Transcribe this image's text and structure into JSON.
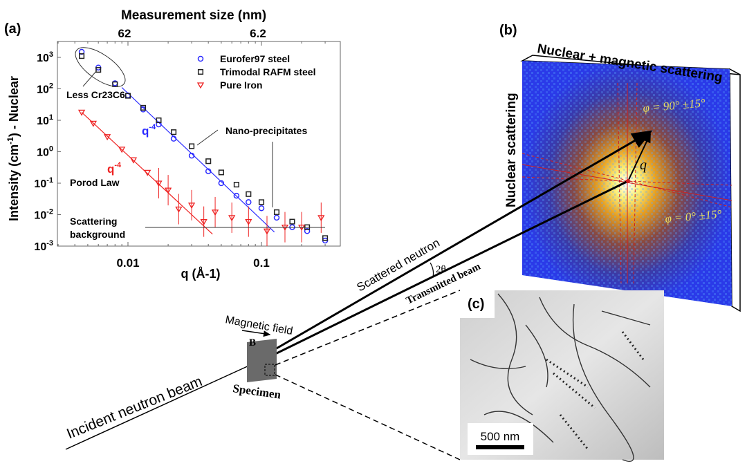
{
  "panels": {
    "a": "(a)",
    "b": "(b)",
    "c": "(c)"
  },
  "chart_data": {
    "type": "scatter",
    "title": "Measurement size (nm)",
    "xlabel": "q (Å-1)",
    "ylabel": "Intensity (cm-1) - Nuclear",
    "xscale": "log",
    "yscale": "log",
    "xlim": [
      0.0031,
      0.4
    ],
    "ylim": [
      0.001,
      3000
    ],
    "x_ticks": [
      {
        "v": 0.01,
        "label": "0.01"
      },
      {
        "v": 0.1,
        "label": "0.1"
      }
    ],
    "top_ticks": [
      {
        "v": 0.01,
        "label": "62"
      },
      {
        "v": 0.1,
        "label": "6.2"
      }
    ],
    "y_ticks": [
      {
        "v": 1000,
        "base": "10",
        "exp": "3"
      },
      {
        "v": 100,
        "base": "10",
        "exp": "2"
      },
      {
        "v": 10,
        "base": "10",
        "exp": "1"
      },
      {
        "v": 1,
        "base": "10",
        "exp": "0"
      },
      {
        "v": 0.1,
        "base": "10",
        "exp": "-1"
      },
      {
        "v": 0.01,
        "base": "10",
        "exp": "-2"
      },
      {
        "v": 0.001,
        "base": "10",
        "exp": "-3"
      }
    ],
    "legend_position": "top-right",
    "series": [
      {
        "name": "Eurofer97 steel",
        "marker": "circle",
        "color": "#2a2aff",
        "x": [
          0.0045,
          0.006,
          0.008,
          0.01,
          0.013,
          0.017,
          0.022,
          0.03,
          0.04,
          0.05,
          0.065,
          0.08,
          0.1,
          0.13,
          0.17,
          0.22,
          0.3
        ],
        "y": [
          1500,
          475,
          150,
          62,
          22,
          7.4,
          2.6,
          0.75,
          0.24,
          0.1,
          0.04,
          0.025,
          0.016,
          0.008,
          0.004,
          0.003,
          0.0015
        ]
      },
      {
        "name": "Trimodal RAFM steel",
        "marker": "square",
        "color": "#222222",
        "x": [
          0.0045,
          0.006,
          0.008,
          0.01,
          0.013,
          0.017,
          0.022,
          0.03,
          0.04,
          0.05,
          0.065,
          0.08,
          0.1,
          0.13,
          0.17,
          0.22,
          0.3
        ],
        "y": [
          1100,
          400,
          140,
          60,
          25,
          10,
          4.2,
          1.5,
          0.5,
          0.22,
          0.09,
          0.045,
          0.025,
          0.012,
          0.006,
          0.004,
          0.0018
        ]
      },
      {
        "name": "Pure Iron",
        "marker": "triangle-down",
        "color": "#ee2222",
        "x": [
          0.0045,
          0.0055,
          0.007,
          0.009,
          0.011,
          0.014,
          0.017,
          0.02,
          0.024,
          0.03,
          0.037,
          0.045,
          0.06,
          0.08,
          0.11,
          0.15,
          0.2,
          0.28
        ],
        "y": [
          18,
          8,
          3,
          1.2,
          0.55,
          0.22,
          0.1,
          0.06,
          0.015,
          0.02,
          0.006,
          0.012,
          0.008,
          0.006,
          0.003,
          0.004,
          0.004,
          0.008
        ]
      }
    ],
    "fits": [
      {
        "label": "q-4",
        "color": "#2a2aff",
        "x": [
          0.009,
          0.125
        ],
        "y": [
          110,
          0.0028
        ]
      },
      {
        "label": "q-4",
        "color": "#ee2222",
        "x": [
          0.0045,
          0.043
        ],
        "y": [
          18,
          0.0024
        ]
      }
    ],
    "annotations": {
      "less_carbide": "Less Cr23C6",
      "nano": "Nano-precipitates",
      "porod": "Porod Law",
      "background_1": "Scattering",
      "background_2": "background",
      "q4_base": "q",
      "q4_exp": "-4"
    }
  },
  "diagram": {
    "detector_top": "Nuclear + magnetic scattering",
    "detector_side": "Nuclear scattering",
    "phi90": "φ = 90° ±15°",
    "phi0": "φ = 0° ±15°",
    "q_vector": "q⃗",
    "scattered": "Scattered neutron",
    "transmitted": "Transmitted beam",
    "two_theta": "2θ",
    "magnetic_field": "Magnetic field",
    "b_field": "B",
    "specimen": "Specimen",
    "incident": "Incident neutron beam",
    "scale_bar": "500 nm"
  }
}
